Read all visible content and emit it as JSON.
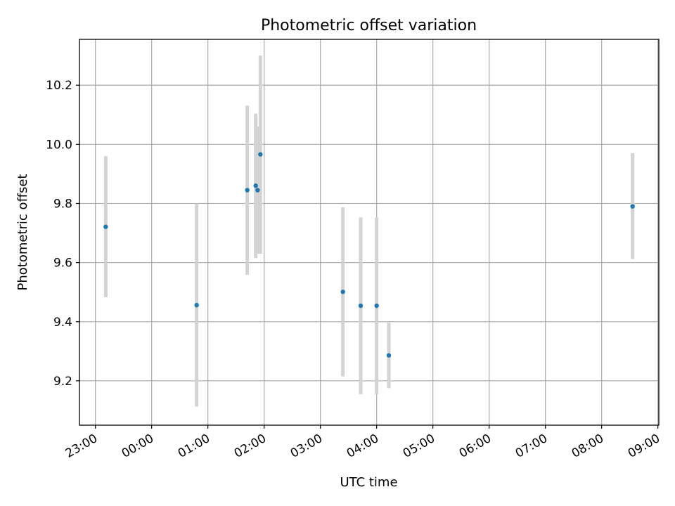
{
  "chart_data": {
    "type": "scatter",
    "title": "Photometric offset variation",
    "xlabel": "UTC time",
    "ylabel": "Photometric offset",
    "x_axis_type": "time",
    "x_range": [
      "22:43",
      "09:01"
    ],
    "xticks": [
      "23:00",
      "00:00",
      "01:00",
      "02:00",
      "03:00",
      "04:00",
      "05:00",
      "06:00",
      "07:00",
      "08:00",
      "09:00"
    ],
    "ylim": [
      9.05,
      10.355
    ],
    "yticks": [
      9.2,
      9.4,
      9.6,
      9.8,
      10.0,
      10.2
    ],
    "ytick_labels": [
      "9.2",
      "9.4",
      "9.6",
      "9.8",
      "10.0",
      "10.2"
    ],
    "grid": true,
    "point_color": "#1f77b4",
    "errorbar_color": "#d3d3d3",
    "points": [
      {
        "time": "23:11",
        "y": 9.721,
        "y_low": 9.483,
        "y_high": 9.96
      },
      {
        "time": "00:48",
        "y": 9.456,
        "y_low": 9.113,
        "y_high": 9.8
      },
      {
        "time": "01:42",
        "y": 9.845,
        "y_low": 9.558,
        "y_high": 10.131
      },
      {
        "time": "01:51",
        "y": 9.86,
        "y_low": 9.615,
        "y_high": 10.104
      },
      {
        "time": "01:53",
        "y": 9.845,
        "y_low": 9.63,
        "y_high": 10.06
      },
      {
        "time": "01:56",
        "y": 9.966,
        "y_low": 9.63,
        "y_high": 10.3
      },
      {
        "time": "03:24",
        "y": 9.501,
        "y_low": 9.215,
        "y_high": 9.787
      },
      {
        "time": "03:43",
        "y": 9.454,
        "y_low": 9.155,
        "y_high": 9.753
      },
      {
        "time": "04:00",
        "y": 9.454,
        "y_low": 9.155,
        "y_high": 9.753
      },
      {
        "time": "04:13",
        "y": 9.286,
        "y_low": 9.175,
        "y_high": 9.397
      },
      {
        "time": "08:33",
        "y": 9.79,
        "y_low": 9.612,
        "y_high": 9.97
      }
    ]
  }
}
